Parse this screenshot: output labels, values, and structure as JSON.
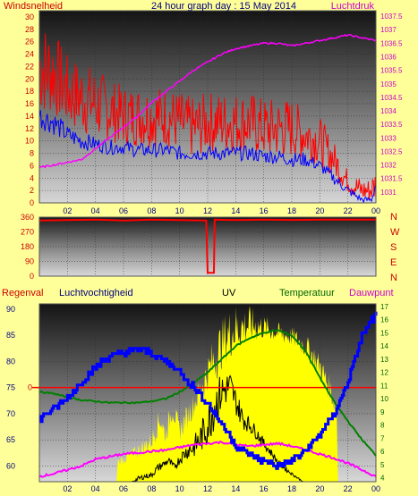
{
  "colors": {
    "background": "#ffff99",
    "wind_speed": "#ff0000",
    "wind_gust": "#0000ff",
    "pressure": "#ff00ff",
    "direction": "#ff0000",
    "humidity": "#0000ff",
    "temperature": "#008000",
    "dewpoint": "#ff00ff",
    "uv": "#ffff00",
    "solar": "#000000",
    "rain": "#ff0000",
    "label_red": "#cc0000",
    "label_navy": "#000080",
    "label_green": "#006600",
    "label_magenta": "#cc00cc"
  },
  "chart_data": [
    {
      "id": "wind-pressure",
      "type": "line",
      "title": "24 hour graph day : 15 May 2014",
      "left_label": "Windsnelheid",
      "right_label": "Luchtdruk",
      "x_ticks": [
        "02",
        "04",
        "06",
        "08",
        "10",
        "12",
        "14",
        "16",
        "18",
        "20",
        "22",
        "00"
      ],
      "y_left_ticks": [
        "0",
        "2",
        "4",
        "6",
        "8",
        "10",
        "12",
        "14",
        "16",
        "18",
        "20",
        "22",
        "24",
        "26",
        "28",
        "30"
      ],
      "y_left_range": [
        0,
        31
      ],
      "y_right_ticks": [
        "1031",
        "1031.5",
        "1032",
        "1032.5",
        "1033",
        "1033.5",
        "1034",
        "1034.5",
        "1035",
        "1035.5",
        "1036",
        "1036.5",
        "1037",
        "1037.5"
      ],
      "y_right_range": [
        1030.6,
        1037.7
      ],
      "x_range": [
        0,
        24
      ],
      "series": [
        {
          "key": "speed",
          "x": [
            0.0,
            1.0,
            2.0,
            3.0,
            4.0,
            5.0,
            6.0,
            7.0,
            8.0,
            9.0,
            10.0,
            11.0,
            12.0,
            13.0,
            14.0,
            15.0,
            16.0,
            17.0,
            18.0,
            19.0,
            20.0,
            21.0,
            21.8,
            22.3,
            23.0,
            23.6,
            24.0
          ],
          "values": [
            22,
            21,
            18,
            17,
            16,
            15,
            14,
            14,
            14,
            14,
            13,
            12,
            13,
            13,
            13,
            13,
            12,
            12,
            12,
            11,
            10,
            7,
            4,
            3,
            2,
            2,
            3
          ],
          "amplitude": [
            8,
            7,
            6,
            6,
            6,
            5,
            5,
            5,
            5,
            5,
            5,
            5,
            5,
            5,
            5,
            5,
            5,
            5,
            5,
            4,
            4,
            3,
            2,
            2,
            2,
            2,
            3
          ]
        },
        {
          "key": "gust",
          "x": [
            0.0,
            1.0,
            2.0,
            3.0,
            4.0,
            5.0,
            6.0,
            7.0,
            8.0,
            9.0,
            10.0,
            11.0,
            12.0,
            13.0,
            14.0,
            15.0,
            16.0,
            17.0,
            18.0,
            19.0,
            20.0,
            21.0,
            22.0,
            23.0,
            23.7,
            24.0
          ],
          "values": [
            14,
            13,
            11,
            10,
            9.5,
            9,
            9,
            8.5,
            8.5,
            8.5,
            8,
            8,
            8,
            8,
            8,
            8,
            7.5,
            7.5,
            7,
            7,
            6,
            4,
            2,
            0.5,
            0.5,
            3
          ],
          "amplitude": [
            2,
            2,
            1.5,
            1.5,
            1.2,
            1.2,
            1.2,
            1.2,
            1.2,
            1.2,
            1.2,
            1.2,
            1.2,
            1.2,
            1.2,
            1.2,
            1.2,
            1.2,
            1.2,
            1.2,
            1,
            1,
            0.8,
            0.5,
            0.5,
            0.5
          ]
        },
        {
          "key": "pressure",
          "axis": "right",
          "x": [
            0.0,
            1.0,
            2.0,
            3.0,
            4.0,
            5.0,
            6.0,
            7.0,
            8.0,
            9.0,
            10.0,
            11.0,
            12.0,
            13.0,
            14.0,
            15.0,
            16.0,
            17.0,
            18.0,
            19.0,
            20.0,
            21.0,
            22.0,
            23.0,
            24.0
          ],
          "values": [
            1031.9,
            1032.0,
            1032.1,
            1032.2,
            1032.6,
            1033.0,
            1033.4,
            1033.8,
            1034.3,
            1034.7,
            1035.1,
            1035.5,
            1035.8,
            1036.1,
            1036.3,
            1036.4,
            1036.5,
            1036.5,
            1036.4,
            1036.5,
            1036.6,
            1036.7,
            1036.8,
            1036.7,
            1036.6
          ]
        }
      ]
    },
    {
      "id": "wind-direction",
      "type": "line",
      "y_ticks": [
        "0",
        "90",
        "180",
        "270",
        "360"
      ],
      "y_range": [
        0,
        360
      ],
      "compass_labels": [
        "N",
        "W",
        "S",
        "E",
        "N"
      ],
      "x_range": [
        0,
        24
      ],
      "series": [
        {
          "key": "direction",
          "x": [
            0.0,
            2.0,
            4.0,
            6.0,
            8.0,
            10.0,
            11.9,
            12.0,
            12.45,
            12.5,
            14.0,
            16.0,
            18.0,
            20.0,
            22.0,
            24.0
          ],
          "values": [
            340,
            342,
            345,
            340,
            345,
            342,
            340,
            20,
            20,
            345,
            342,
            345,
            343,
            345,
            345,
            345
          ]
        }
      ]
    },
    {
      "id": "climate",
      "type": "line",
      "legend": [
        "Regenval",
        "Luchtvochtigheid",
        "UV",
        "Temperatuur",
        "Dauwpunt"
      ],
      "x_ticks": [
        "02",
        "04",
        "06",
        "08",
        "10",
        "12",
        "14",
        "16",
        "18",
        "20",
        "22",
        "00"
      ],
      "y_left_ticks": [
        "60",
        "65",
        "70",
        "75",
        "80",
        "85",
        "90"
      ],
      "y_left_range": [
        57,
        91
      ],
      "y_right_ticks": [
        "4",
        "5",
        "6",
        "7",
        "8",
        "9",
        "10",
        "11",
        "12",
        "13",
        "14",
        "15",
        "16",
        "17"
      ],
      "y_right_range": [
        3.7,
        17.2
      ],
      "rain_label": "0",
      "rain_marker_value": 75,
      "x_range": [
        0,
        24
      ],
      "series": [
        {
          "key": "humidity",
          "x": [
            0.0,
            1.0,
            2.0,
            3.0,
            4.0,
            5.0,
            6.0,
            7.0,
            8.0,
            9.0,
            10.0,
            11.0,
            12.0,
            13.0,
            14.0,
            15.0,
            16.0,
            17.0,
            18.0,
            19.0,
            20.0,
            21.0,
            22.0,
            23.0,
            24.0
          ],
          "values": [
            69,
            71,
            73,
            76,
            79,
            81,
            81.5,
            82.5,
            81.5,
            80,
            78,
            75,
            72,
            68,
            64,
            62,
            61,
            60,
            61,
            63,
            66,
            70,
            76,
            85,
            89
          ]
        },
        {
          "key": "temperature",
          "axis": "right",
          "x": [
            0.0,
            1.0,
            2.0,
            3.0,
            4.0,
            5.0,
            6.0,
            7.0,
            8.0,
            9.0,
            10.0,
            11.0,
            12.0,
            13.0,
            14.0,
            15.0,
            16.0,
            17.0,
            18.0,
            19.0,
            20.0,
            21.0,
            22.0,
            23.0,
            24.0
          ],
          "values": [
            10.5,
            10.4,
            10.1,
            9.9,
            9.8,
            9.7,
            9.7,
            9.7,
            9.8,
            10.0,
            10.5,
            11.2,
            12.0,
            13.0,
            14.0,
            14.6,
            15.0,
            15.2,
            14.8,
            13.6,
            11.6,
            9.8,
            8.3,
            6.9,
            5.7
          ]
        },
        {
          "key": "dewpoint",
          "axis": "right",
          "x": [
            0.0,
            1.0,
            2.0,
            3.0,
            4.0,
            5.0,
            6.0,
            7.0,
            8.0,
            9.0,
            10.0,
            11.0,
            12.0,
            13.0,
            14.0,
            15.0,
            16.0,
            17.0,
            18.0,
            19.0,
            20.0,
            21.0,
            22.0,
            23.0,
            24.0
          ],
          "values": [
            4.1,
            4.3,
            4.6,
            4.9,
            5.4,
            5.6,
            5.8,
            5.9,
            6.0,
            6.1,
            6.3,
            6.5,
            6.6,
            6.7,
            6.5,
            6.4,
            6.5,
            6.6,
            6.4,
            6.1,
            5.8,
            5.5,
            5.1,
            4.6,
            4.1
          ]
        },
        {
          "key": "uv",
          "axis": "right",
          "x": [
            0.0,
            5.5,
            5.6,
            7.0,
            8.0,
            8.6,
            9.0,
            9.5,
            10.0,
            10.6,
            11.0,
            12.0,
            12.7,
            13.3,
            14.0,
            15.0,
            16.0,
            17.0,
            18.0,
            19.0,
            20.0,
            20.8,
            21.2,
            21.3,
            24.0
          ],
          "values": [
            3.7,
            3.7,
            5.2,
            6.0,
            6.8,
            8.5,
            7.2,
            9.3,
            7.5,
            8.8,
            9.5,
            12.0,
            13.5,
            14.7,
            15.3,
            15.6,
            15.4,
            15.0,
            14.7,
            14.0,
            12.5,
            10.5,
            9.0,
            3.7,
            3.7
          ],
          "amplitude": [
            0,
            0,
            0.4,
            0.6,
            0.8,
            1.0,
            0.8,
            1.0,
            0.8,
            1.0,
            1.0,
            1.5,
            2.0,
            2.0,
            2.0,
            1.5,
            1.0,
            0.8,
            0.8,
            1.0,
            1.0,
            1.0,
            0.8,
            0,
            0
          ]
        },
        {
          "key": "solar",
          "axis": "right",
          "x": [
            0.0,
            6.6,
            7.0,
            7.5,
            8.0,
            8.4,
            8.8,
            9.2,
            9.6,
            10.0,
            10.5,
            11.0,
            11.5,
            12.0,
            12.5,
            13.0,
            13.6,
            14.0,
            14.5,
            15.0,
            15.5,
            16.0,
            16.6,
            17.0,
            17.5,
            18.0,
            18.4,
            18.8,
            24.0
          ],
          "values": [
            3.7,
            3.7,
            3.9,
            4.1,
            4.2,
            4.7,
            5.0,
            5.3,
            4.8,
            5.4,
            6.0,
            6.3,
            7.0,
            8.0,
            9.5,
            10.5,
            11.0,
            9.8,
            8.5,
            8.0,
            7.4,
            6.6,
            5.8,
            5.2,
            4.7,
            4.3,
            4.0,
            3.7,
            3.7
          ],
          "amplitude": [
            0,
            0,
            0.2,
            0.2,
            0.2,
            0.3,
            0.3,
            0.3,
            0.3,
            0.4,
            0.6,
            0.8,
            1.2,
            1.6,
            1.8,
            1.5,
            1.2,
            1.0,
            0.8,
            0.6,
            0.5,
            0.4,
            0.3,
            0.2,
            0.2,
            0.1,
            0.1,
            0,
            0
          ]
        }
      ]
    }
  ]
}
